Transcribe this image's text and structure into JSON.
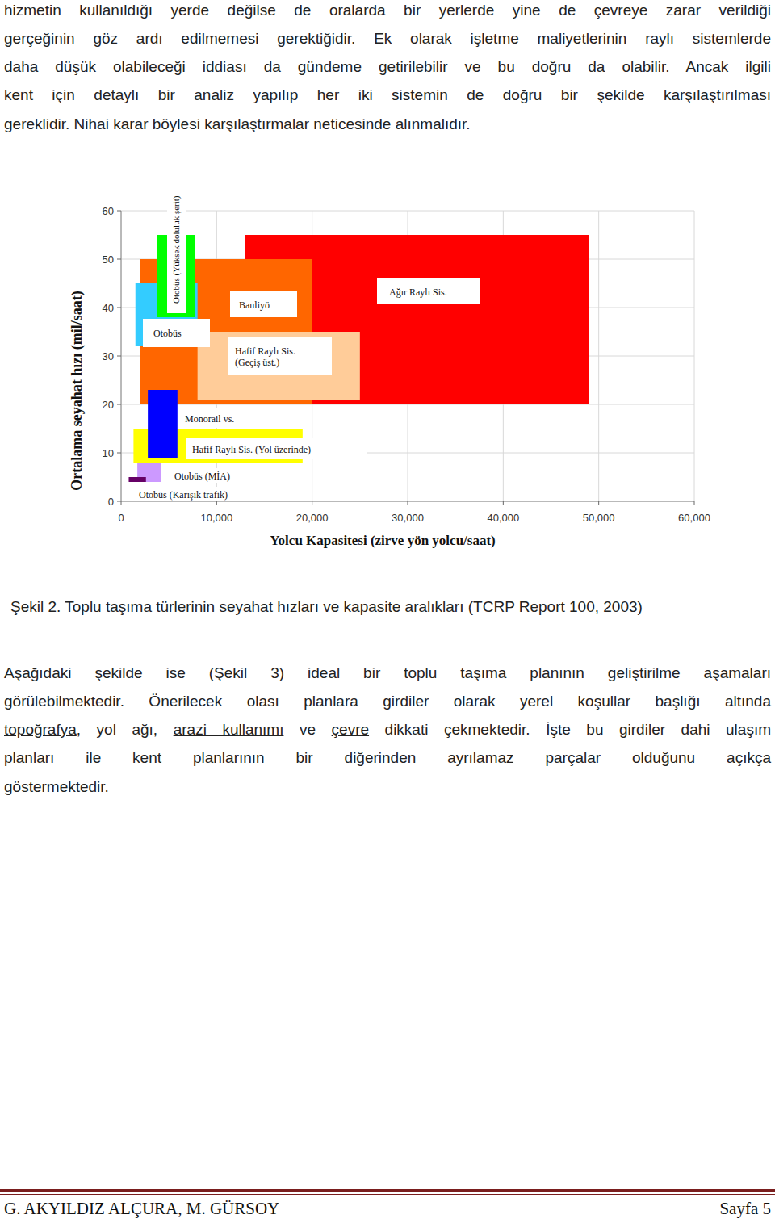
{
  "page": {
    "paragraph_top": [
      "hizmetin kullanıldığı yerde değilse de oralarda bir yerlerde yine de çevreye zarar verildiği",
      "gerçeğinin göz ardı edilmemesi gerektiğidir. Ek olarak işletme maliyetlerinin raylı sistemlerde",
      "daha düşük olabileceği iddiası da gündeme getirilebilir ve bu doğru da olabilir. Ancak ilgili",
      "kent için detaylı bir analiz yapılıp her iki sistemin de doğru bir şekilde karşılaştırılması",
      "gereklidir. Nihai karar böylesi karşılaştırmalar neticesinde alınmalıdır."
    ],
    "caption": "Şekil 2. Toplu taşıma türlerinin seyahat hızları ve kapasite aralıkları (TCRP Report 100, 2003)",
    "paragraph_bottom": [
      "Aşağıdaki şekilde ise (Şekil 3) ideal bir toplu taşıma planının geliştirilme aşamaları",
      "görülebilmektedir. Önerilecek olası planlara girdiler olarak yerel koşullar başlığı altında",
      [
        {
          "text": "topoğrafya",
          "underline": true
        },
        ", yol ağı, ",
        {
          "text": "arazi kullanımı",
          "underline": true
        },
        " ve ",
        {
          "text": "çevre",
          "underline": true
        },
        " dikkati çekmektedir. İşte bu girdiler dahi ulaşım"
      ],
      "planları ile kent planlarının bir diğerinden ayrılamaz parçalar olduğunu açıkça",
      "göstermektedir."
    ],
    "footer": {
      "left": "G. AKYILDIZ ALÇURA, M. GÜRSOY",
      "right": "Sayfa 5"
    }
  },
  "chart_data": {
    "type": "range",
    "x_label": "Yolcu Kapasitesi (zirve yön yolcu/saat)",
    "y_label": "Ortalama seyahat hızı (mil/saat)",
    "xlim": [
      0,
      60000
    ],
    "ylim": [
      0,
      60
    ],
    "xticks": [
      0,
      {
        "value": 10000,
        "label": "10,000"
      },
      {
        "value": 20000,
        "label": "20,000"
      },
      {
        "value": 30000,
        "label": "30,000"
      },
      {
        "value": 40000,
        "label": "40,000"
      },
      {
        "value": 50000,
        "label": "50,000"
      },
      {
        "value": 60000,
        "label": "60,000"
      }
    ],
    "yticks": [
      0,
      10,
      20,
      30,
      40,
      50,
      60
    ],
    "grid": true,
    "series": [
      {
        "name": "Ağır Raylı Sis.",
        "color": "#ff0000",
        "capacity": [
          13000,
          49000
        ],
        "speed": [
          20,
          55
        ]
      },
      {
        "name": "Banliyö",
        "color": "#ff6600",
        "capacity": [
          2000,
          20000
        ],
        "speed": [
          20,
          50
        ]
      },
      {
        "name": "Hafif Raylı Sis. (Geçiş üst.)",
        "color": "#ffcc99",
        "capacity": [
          8000,
          25000
        ],
        "speed": [
          21,
          35
        ]
      },
      {
        "name": "Otobüs",
        "color": "#33ccff",
        "capacity": [
          1500,
          8000
        ],
        "speed": [
          32,
          45
        ]
      },
      {
        "name": "Otobüs (Yüksek doluluk şerit)",
        "color": "#00ff00",
        "capacity": [
          3800,
          7700
        ],
        "speed": [
          38,
          55
        ]
      },
      {
        "name": "Hafif Raylı Sis. (Yol üzerinde)",
        "color": "#ffff00",
        "capacity": [
          1300,
          19000
        ],
        "speed": [
          8,
          15
        ]
      },
      {
        "name": "Monorail vs.",
        "color": "#0000ff",
        "capacity": [
          2800,
          5900
        ],
        "speed": [
          9,
          23
        ]
      },
      {
        "name": "Otobüs (MİA)",
        "color": "#cc99ff",
        "capacity": [
          1700,
          4200
        ],
        "speed": [
          4,
          8
        ]
      },
      {
        "name": "Otobüs (Karışık trafik)",
        "color": "#660066",
        "capacity": [
          800,
          2600
        ],
        "speed": [
          4,
          5
        ]
      }
    ]
  }
}
